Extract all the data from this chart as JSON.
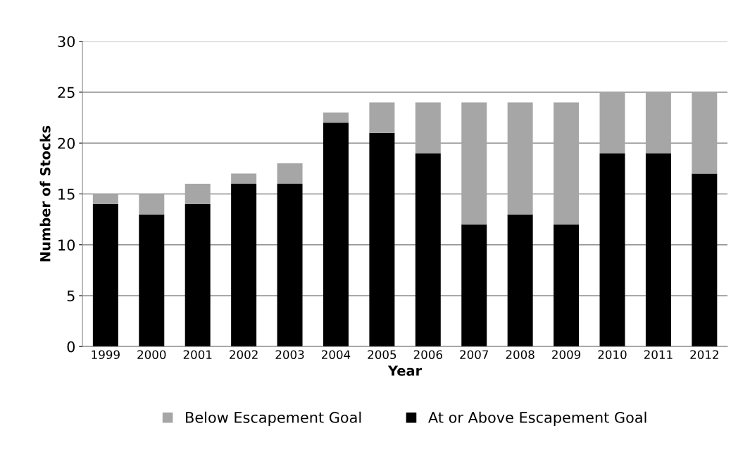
{
  "chart_data": {
    "type": "bar",
    "stacked": true,
    "xlabel": "Year",
    "ylabel": "Number of Stocks",
    "categories": [
      "1999",
      "2000",
      "2001",
      "2002",
      "2003",
      "2004",
      "2005",
      "2006",
      "2007",
      "2008",
      "2009",
      "2010",
      "2011",
      "2012"
    ],
    "series": [
      {
        "name": "At or Above Escapement Goal",
        "color": "#000000",
        "values": [
          14,
          13,
          14,
          16,
          16,
          22,
          21,
          19,
          12,
          13,
          12,
          19,
          19,
          17
        ]
      },
      {
        "name": "Below Escapement Goal",
        "color": "#a6a6a6",
        "values": [
          1,
          2,
          2,
          1,
          2,
          1,
          3,
          5,
          12,
          11,
          12,
          6,
          6,
          8
        ]
      }
    ],
    "ylim": [
      0,
      30
    ],
    "yticks": [
      0,
      5,
      10,
      15,
      20,
      25,
      30
    ],
    "grid": "y",
    "legend": "bottom"
  }
}
